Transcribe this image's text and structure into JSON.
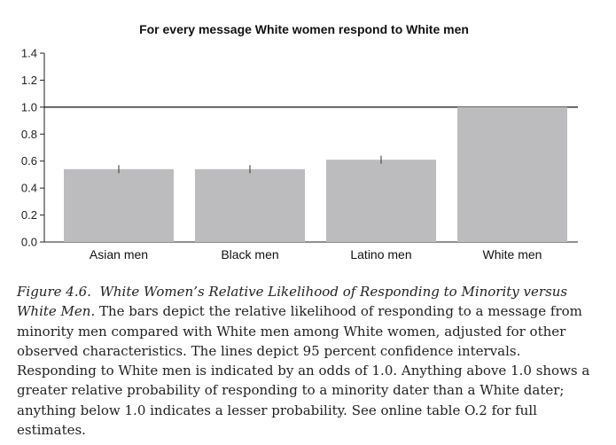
{
  "chart_data": {
    "type": "bar",
    "title": "For every message White women respond to White men",
    "categories": [
      "Asian men",
      "Black men",
      "Latino men",
      "White men"
    ],
    "values": [
      0.54,
      0.54,
      0.61,
      1.0
    ],
    "ci": [
      [
        0.51,
        0.57
      ],
      [
        0.51,
        0.57
      ],
      [
        0.58,
        0.64
      ],
      null
    ],
    "ylim": [
      0,
      1.4
    ],
    "yticks": [
      "0.0",
      "0.2",
      "0.4",
      "0.6",
      "0.8",
      "1.0",
      "1.2",
      "1.4"
    ],
    "reference_line": 1.0,
    "xlabel": "",
    "ylabel": "",
    "bar_color": "#bcbcbe",
    "grid": false
  },
  "caption": {
    "label": "Figure 4.6.",
    "title": "White Women’s Relative Likelihood of Responding to Minority versus White Men.",
    "text": "The bars depict the relative likelihood of responding to a message from minority men compared with White men among White women, adjusted for other observed characteristics. The lines depict 95 percent confidence intervals. Responding to White men is indicated by an odds of 1.0. Anything above 1.0 shows a greater relative probability of responding to a minority dater than a White dater; anything below 1.0 indicates a lesser probability. See online table O.2 for full estimates."
  }
}
